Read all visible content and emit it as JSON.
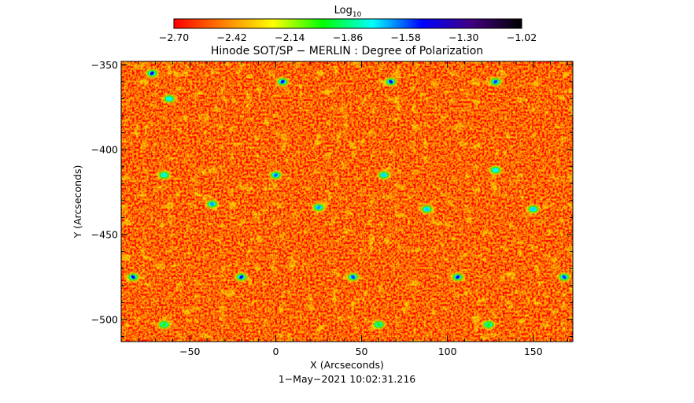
{
  "colorbar": {
    "title": "Log",
    "title_sub": "10",
    "ticks": [
      "-2.70",
      "-2.42",
      "-2.14",
      "-1.86",
      "-1.58",
      "-1.30",
      "-1.02"
    ],
    "range": [
      -2.7,
      -1.02
    ],
    "colormap": [
      "#ff0000",
      "#ff8000",
      "#ffff00",
      "#00ff00",
      "#00ffff",
      "#0000ff",
      "#400080",
      "#000000"
    ]
  },
  "chart_data": {
    "type": "heatmap",
    "title": "Hinode SOT/SP − MERLIN : Degree of Polarization",
    "xlabel": "X (Arcseconds)",
    "ylabel": "Y (Arcseconds)",
    "xlim": [
      -90,
      173
    ],
    "ylim": [
      -513,
      -348
    ],
    "x_ticks": [
      -50,
      0,
      50,
      100,
      150
    ],
    "y_ticks": [
      -350,
      -400,
      -450,
      -500
    ],
    "x_tick_labels": [
      "−50",
      "0",
      "50",
      "100",
      "150"
    ],
    "y_tick_labels": [
      "−350",
      "−400",
      "−450",
      "−500"
    ],
    "value_range": [
      -2.7,
      -1.02
    ],
    "typical_value": -2.55,
    "strong_polarization_features": [
      {
        "x": -72,
        "y": -355,
        "value": -1.45
      },
      {
        "x": -62,
        "y": -370,
        "value": -1.75
      },
      {
        "x": 4,
        "y": -360,
        "value": -1.5
      },
      {
        "x": 67,
        "y": -360,
        "value": -1.45
      },
      {
        "x": 128,
        "y": -360,
        "value": -1.55
      },
      {
        "x": -65,
        "y": -415,
        "value": -1.8
      },
      {
        "x": 0,
        "y": -415,
        "value": -1.6
      },
      {
        "x": 63,
        "y": -415,
        "value": -1.7
      },
      {
        "x": 128,
        "y": -412,
        "value": -1.75
      },
      {
        "x": -37,
        "y": -432,
        "value": -1.65
      },
      {
        "x": 25,
        "y": -434,
        "value": -1.65
      },
      {
        "x": 88,
        "y": -435,
        "value": -1.7
      },
      {
        "x": 150,
        "y": -435,
        "value": -1.7
      },
      {
        "x": -83,
        "y": -475,
        "value": -1.45
      },
      {
        "x": -20,
        "y": -475,
        "value": -1.5
      },
      {
        "x": 45,
        "y": -475,
        "value": -1.55
      },
      {
        "x": 106,
        "y": -475,
        "value": -1.45
      },
      {
        "x": 168,
        "y": -475,
        "value": -1.55
      },
      {
        "x": -65,
        "y": -503,
        "value": -2.0
      },
      {
        "x": 60,
        "y": -503,
        "value": -2.0
      },
      {
        "x": 124,
        "y": -503,
        "value": -2.0
      }
    ]
  },
  "footer": {
    "timestamp": "1−May−2021 10:02:31.216"
  }
}
